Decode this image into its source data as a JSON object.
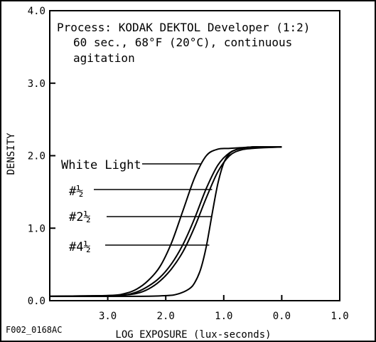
{
  "chart_data": {
    "type": "line",
    "annotation_lines": [
      "Process: KODAK DEKTOL Developer (1:2)",
      "60 sec., 68°F (20°C), continuous",
      "agitation"
    ],
    "xlabel": "LOG EXPOSURE (lux-seconds)",
    "ylabel": "DENSITY",
    "figure_code": "F002_0168AC",
    "x_ticks": [
      "3.0",
      "2.0",
      "1.0",
      "0.0",
      "1.0"
    ],
    "x_tick_values": [
      -3.0,
      -2.0,
      -1.0,
      0.0,
      1.0
    ],
    "y_ticks": [
      "0.0",
      "1.0",
      "2.0",
      "3.0",
      "4.0"
    ],
    "y_tick_values": [
      0.0,
      1.0,
      2.0,
      3.0,
      4.0
    ],
    "xlim": [
      -4.0,
      1.0
    ],
    "ylim": [
      0.0,
      4.0
    ],
    "grid": false,
    "series": [
      {
        "name": "White Light",
        "label_at": [
          -1.4,
          1.9
        ],
        "x": [
          -4.0,
          -3.0,
          -2.7,
          -2.5,
          -2.3,
          -2.1,
          -1.9,
          -1.7,
          -1.5,
          -1.3,
          -1.1,
          -0.9,
          -0.7,
          -0.5,
          -0.3,
          0.0
        ],
        "y": [
          0.06,
          0.07,
          0.1,
          0.16,
          0.28,
          0.47,
          0.8,
          1.25,
          1.7,
          2.0,
          2.09,
          2.1,
          2.11,
          2.12,
          2.12,
          2.12
        ]
      },
      {
        "name": "#½",
        "name_parts": [
          "#",
          "½"
        ],
        "label_at": [
          -1.2,
          1.53
        ],
        "x": [
          -4.0,
          -3.0,
          -2.7,
          -2.5,
          -2.3,
          -2.1,
          -1.9,
          -1.7,
          -1.5,
          -1.3,
          -1.1,
          -0.9,
          -0.7,
          -0.5,
          -0.3,
          0.0
        ],
        "y": [
          0.06,
          0.07,
          0.08,
          0.12,
          0.2,
          0.32,
          0.51,
          0.78,
          1.14,
          1.55,
          1.87,
          2.04,
          2.1,
          2.12,
          2.12,
          2.12
        ]
      },
      {
        "name": "#2½",
        "name_parts": [
          "#2",
          "½"
        ],
        "label_at": [
          -1.2,
          1.15
        ],
        "x": [
          -4.0,
          -3.0,
          -2.7,
          -2.5,
          -2.3,
          -2.1,
          -1.9,
          -1.7,
          -1.5,
          -1.3,
          -1.1,
          -0.9,
          -0.7,
          -0.5,
          -0.3,
          0.0
        ],
        "y": [
          0.06,
          0.07,
          0.08,
          0.1,
          0.16,
          0.27,
          0.44,
          0.68,
          1.02,
          1.42,
          1.78,
          2.0,
          2.08,
          2.1,
          2.11,
          2.12
        ]
      },
      {
        "name": "#4½",
        "name_parts": [
          "#4",
          "½"
        ],
        "label_at": [
          -1.25,
          0.77
        ],
        "x": [
          -4.0,
          -2.5,
          -2.0,
          -1.8,
          -1.6,
          -1.5,
          -1.4,
          -1.3,
          -1.2,
          -1.1,
          -1.0,
          -0.9,
          -0.8,
          -0.7,
          -0.5,
          0.0
        ],
        "y": [
          0.06,
          0.06,
          0.07,
          0.09,
          0.16,
          0.25,
          0.43,
          0.75,
          1.2,
          1.62,
          1.9,
          2.03,
          2.08,
          2.1,
          2.12,
          2.12
        ]
      }
    ]
  }
}
